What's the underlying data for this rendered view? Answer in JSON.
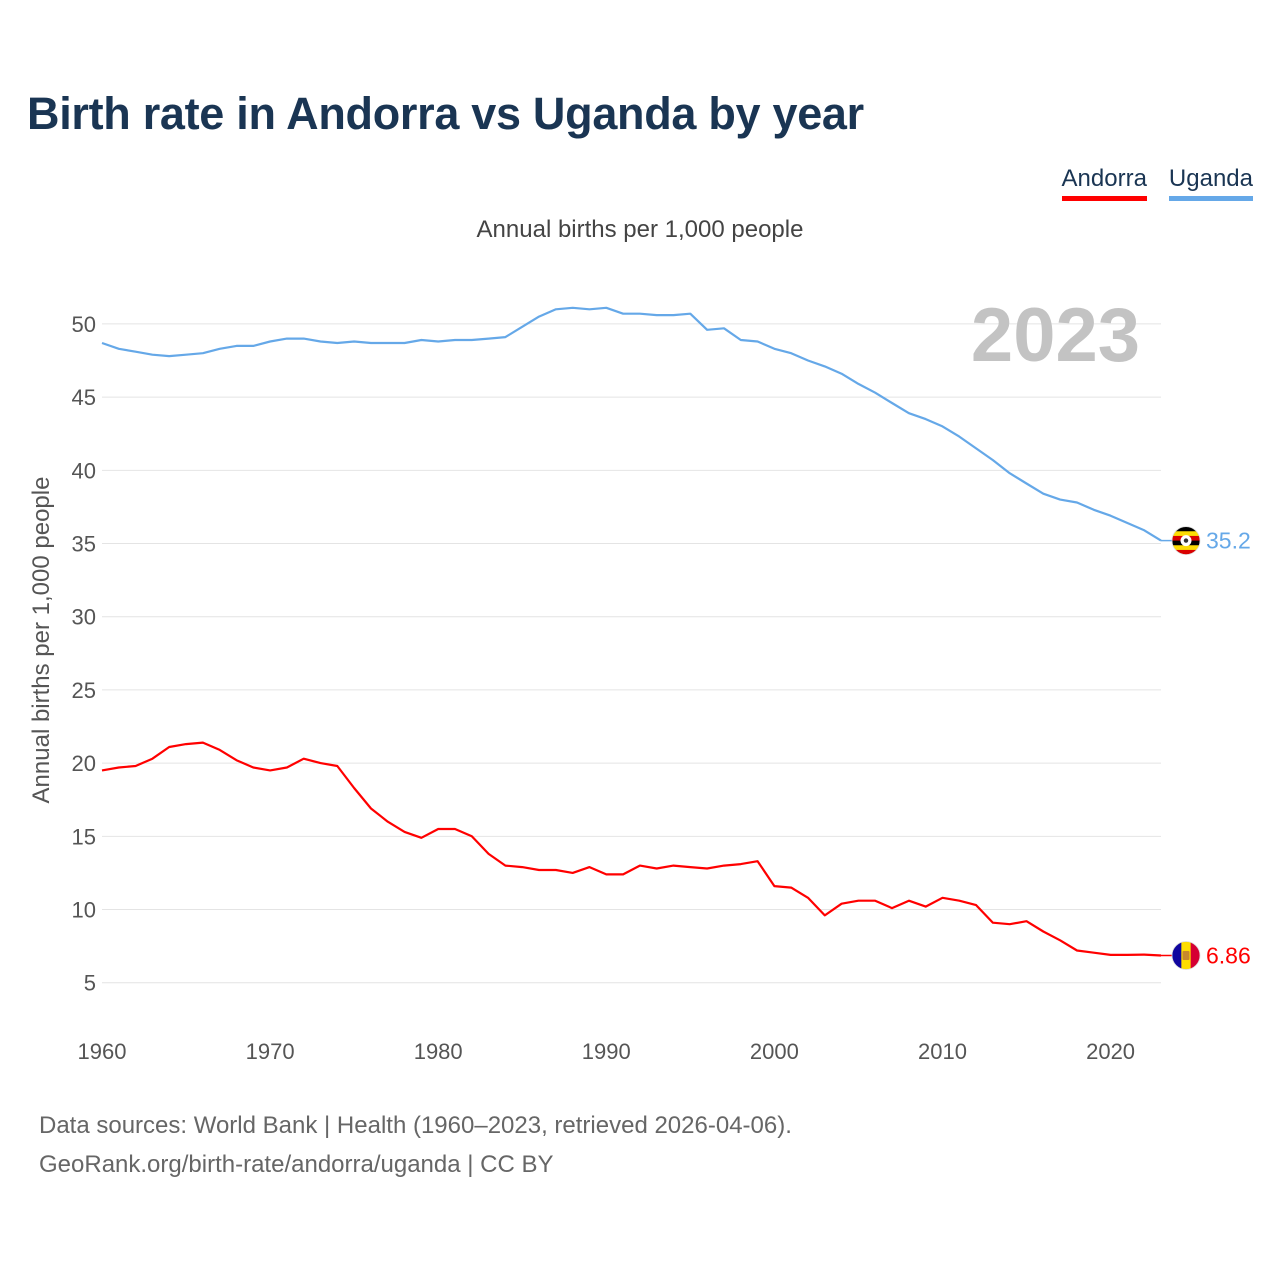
{
  "chart_data": {
    "type": "line",
    "title": "Birth rate in Andorra vs Uganda by year",
    "subtitle": "Annual births per 1,000 people",
    "ylabel": "Annual births per 1,000 people",
    "xlabel": "",
    "year_label": "2023",
    "x": [
      1960,
      1961,
      1962,
      1963,
      1964,
      1965,
      1966,
      1967,
      1968,
      1969,
      1970,
      1971,
      1972,
      1973,
      1974,
      1975,
      1976,
      1977,
      1978,
      1979,
      1980,
      1981,
      1982,
      1983,
      1984,
      1985,
      1986,
      1987,
      1988,
      1989,
      1990,
      1991,
      1992,
      1993,
      1994,
      1995,
      1996,
      1997,
      1998,
      1999,
      2000,
      2001,
      2002,
      2003,
      2004,
      2005,
      2006,
      2007,
      2008,
      2009,
      2010,
      2011,
      2012,
      2013,
      2014,
      2015,
      2016,
      2017,
      2018,
      2019,
      2020,
      2021,
      2022,
      2023
    ],
    "xlim": [
      1960,
      2023
    ],
    "ylim": [
      3,
      53
    ],
    "x_ticks": [
      1960,
      1970,
      1980,
      1990,
      2000,
      2010,
      2020
    ],
    "y_ticks": [
      5,
      10,
      15,
      20,
      25,
      30,
      35,
      40,
      45,
      50
    ],
    "series": [
      {
        "name": "Andorra",
        "color": "#ff0000",
        "end_label": "6.86",
        "flag": "andorra-flag",
        "values": [
          19.5,
          19.7,
          19.8,
          20.3,
          21.1,
          21.3,
          21.4,
          20.9,
          20.2,
          19.7,
          19.5,
          19.7,
          20.3,
          20.0,
          19.8,
          18.3,
          16.9,
          16.0,
          15.3,
          14.9,
          15.5,
          15.5,
          15.0,
          13.8,
          13.0,
          12.9,
          12.7,
          12.7,
          12.5,
          12.9,
          12.4,
          12.4,
          13.0,
          12.8,
          13.0,
          12.9,
          12.8,
          13.0,
          13.1,
          13.3,
          11.6,
          11.5,
          10.8,
          9.6,
          10.4,
          10.6,
          10.6,
          10.1,
          10.6,
          10.2,
          10.8,
          10.6,
          10.3,
          9.1,
          9.0,
          9.2,
          8.5,
          7.9,
          7.2,
          7.05,
          6.9,
          6.9,
          6.92,
          6.86
        ]
      },
      {
        "name": "Uganda",
        "color": "#65a8e8",
        "end_label": "35.2",
        "flag": "uganda-flag",
        "values": [
          48.7,
          48.3,
          48.1,
          47.9,
          47.8,
          47.9,
          48.0,
          48.3,
          48.5,
          48.5,
          48.8,
          49.0,
          49.0,
          48.8,
          48.7,
          48.8,
          48.7,
          48.7,
          48.7,
          48.9,
          48.8,
          48.9,
          48.9,
          49.0,
          49.1,
          49.8,
          50.5,
          51.0,
          51.1,
          51.0,
          51.1,
          50.7,
          50.7,
          50.6,
          50.6,
          50.7,
          49.6,
          49.7,
          48.9,
          48.8,
          48.3,
          48.0,
          47.5,
          47.1,
          46.6,
          45.9,
          45.3,
          44.6,
          43.9,
          43.5,
          43.0,
          42.3,
          41.5,
          40.7,
          39.8,
          39.1,
          38.4,
          38.0,
          37.8,
          37.3,
          36.9,
          36.4,
          35.9,
          35.2
        ]
      }
    ]
  },
  "legend": {
    "andorra": "Andorra",
    "uganda": "Uganda"
  },
  "footer": {
    "line1": "Data sources: World Bank | Health (1960–2023, retrieved 2026-04-06).",
    "line2": "GeoRank.org/birth-rate/andorra/uganda | CC BY"
  }
}
